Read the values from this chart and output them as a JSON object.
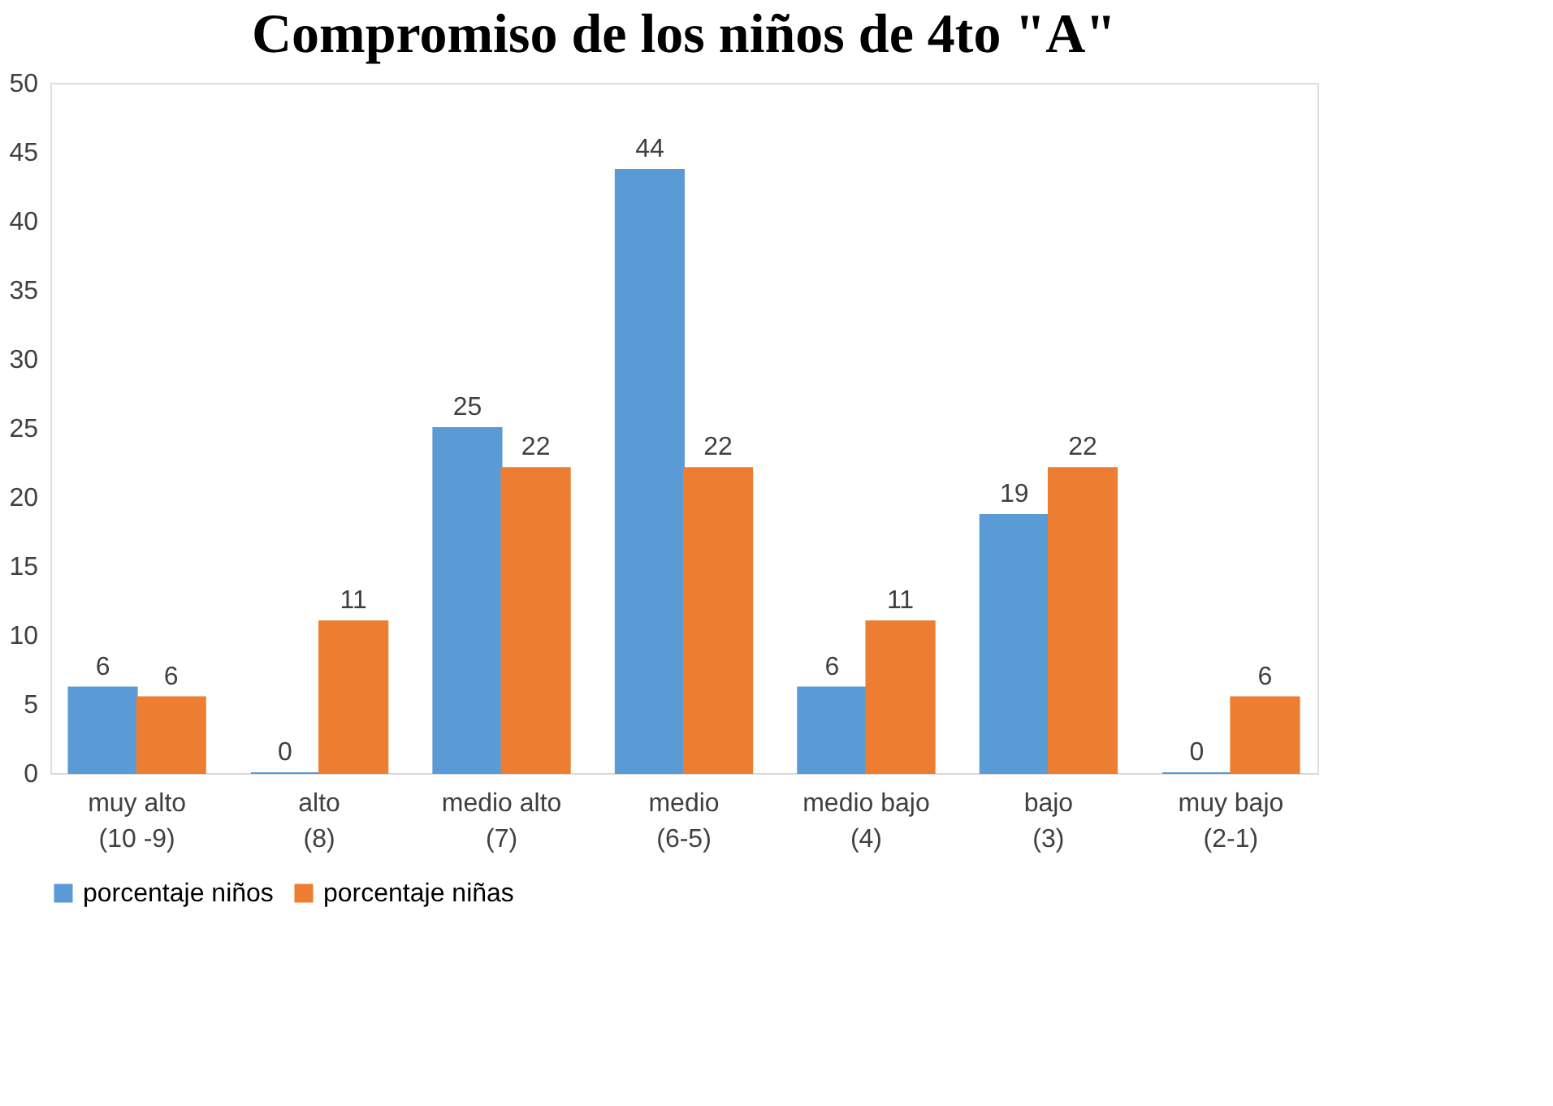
{
  "chart_data": {
    "type": "bar",
    "title": "Compromiso de los niños de 4to \"A\"",
    "categories": [
      "muy alto (10 -9)",
      "alto (8)",
      "medio alto (7)",
      "medio (6-5)",
      "medio bajo (4)",
      "bajo (3)",
      "muy bajo (2-1)"
    ],
    "series": [
      {
        "name": "porcentaje niños",
        "color": "#5b9bd5",
        "values": [
          6.2,
          0,
          25,
          43.7,
          6.2,
          18.7,
          0
        ],
        "value_labels": [
          "6",
          "0",
          "25",
          "44",
          "6",
          "19",
          "0"
        ]
      },
      {
        "name": "porcentaje niñas",
        "color": "#ed7d31",
        "values": [
          5.5,
          11,
          22.1,
          22.1,
          11,
          22.1,
          5.5
        ],
        "value_labels": [
          "6",
          "11",
          "22",
          "22",
          "11",
          "22",
          "6"
        ]
      }
    ],
    "ylim": [
      0,
      50
    ],
    "yticks": [
      0,
      5,
      10,
      15,
      20,
      25,
      30,
      35,
      40,
      45,
      50
    ],
    "grid": false,
    "legend": "bottom"
  }
}
